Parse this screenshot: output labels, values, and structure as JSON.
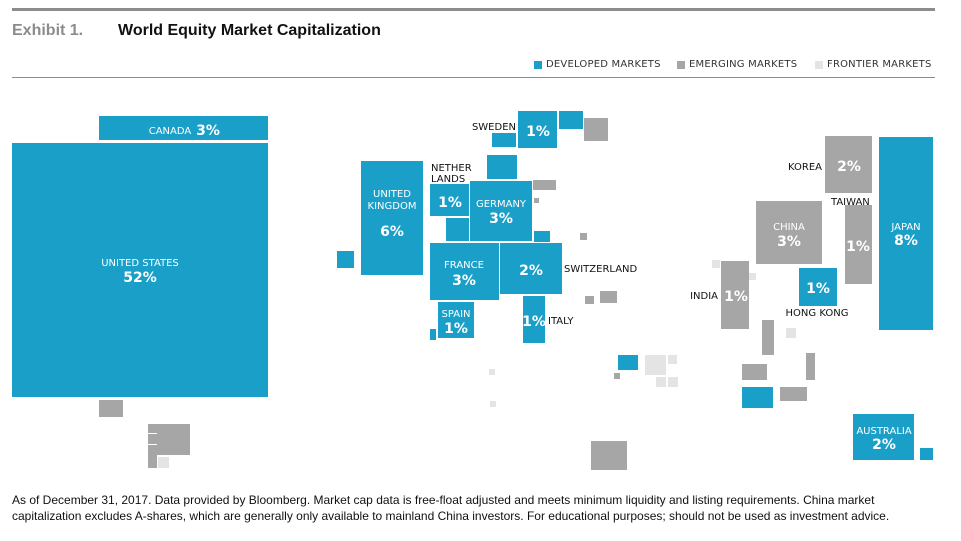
{
  "header": {
    "exhibit_number": "Exhibit 1.",
    "title": "World Equity Market Capitalization"
  },
  "legend": [
    {
      "key": "developed",
      "label": "DEVELOPED MARKETS",
      "color": "#1a9fc9"
    },
    {
      "key": "emerging",
      "label": "EMERGING MARKETS",
      "color": "#a6a6a6"
    },
    {
      "key": "frontier",
      "label": "FRONTIER MARKETS",
      "color": "#e4e4e4"
    }
  ],
  "chart_data": {
    "type": "treemap-cartogram",
    "title": "World Equity Market Capitalization",
    "unit": "% of world equity market capitalization",
    "labeled_markets": [
      {
        "name": "UNITED STATES",
        "lines": [
          "UNITED STATES"
        ],
        "value": "52%",
        "category": "developed"
      },
      {
        "name": "CANADA",
        "lines": [
          "CANADA"
        ],
        "value": "3%",
        "category": "developed"
      },
      {
        "name": "UNITED KINGDOM",
        "lines": [
          "UNITED",
          "KINGDOM"
        ],
        "value": "6%",
        "category": "developed"
      },
      {
        "name": "NETHERLANDS",
        "lines": [
          "NETHER",
          "LANDS"
        ],
        "value": "1%",
        "category": "developed"
      },
      {
        "name": "GERMANY",
        "lines": [
          "GERMANY"
        ],
        "value": "3%",
        "category": "developed"
      },
      {
        "name": "SWEDEN",
        "lines": [
          "SWEDEN"
        ],
        "value": "1%",
        "category": "developed"
      },
      {
        "name": "FRANCE",
        "lines": [
          "FRANCE"
        ],
        "value": "3%",
        "category": "developed"
      },
      {
        "name": "SWITZERLAND",
        "lines": [
          "SWITZERLAND"
        ],
        "value": "2%",
        "category": "developed"
      },
      {
        "name": "SPAIN",
        "lines": [
          "SPAIN"
        ],
        "value": "1%",
        "category": "developed"
      },
      {
        "name": "ITALY",
        "lines": [
          "ITALY"
        ],
        "value": "1%",
        "category": "developed"
      },
      {
        "name": "KOREA",
        "lines": [
          "KOREA"
        ],
        "value": "2%",
        "category": "emerging"
      },
      {
        "name": "TAIWAN",
        "lines": [
          "TAIWAN"
        ],
        "value": "1%",
        "category": "emerging"
      },
      {
        "name": "CHINA",
        "lines": [
          "CHINA"
        ],
        "value": "3%",
        "category": "emerging"
      },
      {
        "name": "JAPAN",
        "lines": [
          "JAPAN"
        ],
        "value": "8%",
        "category": "developed"
      },
      {
        "name": "INDIA",
        "lines": [
          "INDIA"
        ],
        "value": "1%",
        "category": "emerging"
      },
      {
        "name": "HONG KONG",
        "lines": [
          "HONG KONG"
        ],
        "value": "1%",
        "category": "developed"
      },
      {
        "name": "AUSTRALIA",
        "lines": [
          "AUSTRALIA"
        ],
        "value": "2%",
        "category": "developed"
      }
    ]
  },
  "footnote": "As of December 31, 2017. Data provided by Bloomberg. Market cap data is free-float adjusted and meets minimum liquidity and listing requirements. China market capitalization excludes A-shares, which are generally only available to mainland China investors. For educational purposes; should not be used as investment advice."
}
